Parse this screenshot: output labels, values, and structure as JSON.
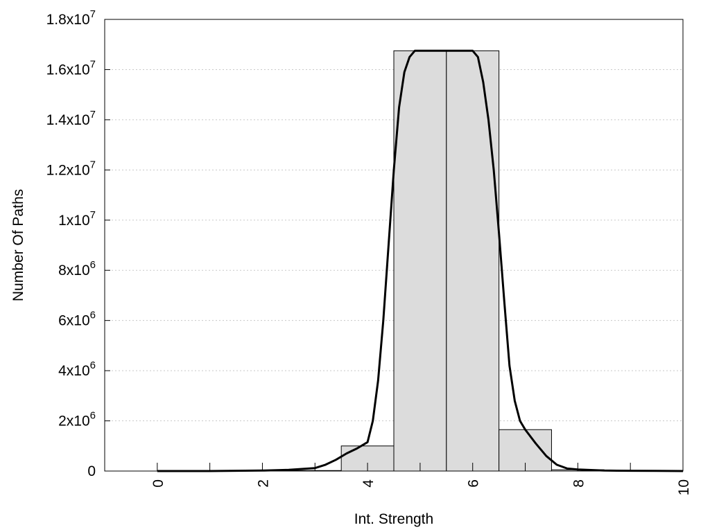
{
  "chart_data": {
    "type": "bar",
    "xlabel": "Int. Strength",
    "ylabel": "Number Of Paths",
    "xlim": [
      -1,
      10
    ],
    "ylim": [
      0,
      18000000
    ],
    "grid": "horizontal-dotted",
    "x_ticks": [
      {
        "value": 0,
        "label": "0"
      },
      {
        "value": 2,
        "label": "2"
      },
      {
        "value": 4,
        "label": "4"
      },
      {
        "value": 6,
        "label": "6"
      },
      {
        "value": 8,
        "label": "8"
      },
      {
        "value": 10,
        "label": "10"
      }
    ],
    "y_ticks": [
      {
        "value": 0,
        "mantissa": "0",
        "exponent": ""
      },
      {
        "value": 2000000,
        "mantissa": "2x10",
        "exponent": "6"
      },
      {
        "value": 4000000,
        "mantissa": "4x10",
        "exponent": "6"
      },
      {
        "value": 6000000,
        "mantissa": "6x10",
        "exponent": "6"
      },
      {
        "value": 8000000,
        "mantissa": "8x10",
        "exponent": "6"
      },
      {
        "value": 10000000,
        "mantissa": "1x10",
        "exponent": "7"
      },
      {
        "value": 12000000,
        "mantissa": "1.2x10",
        "exponent": "7"
      },
      {
        "value": 14000000,
        "mantissa": "1.4x10",
        "exponent": "7"
      },
      {
        "value": 16000000,
        "mantissa": "1.6x10",
        "exponent": "7"
      },
      {
        "value": 18000000,
        "mantissa": "1.8x10",
        "exponent": "7"
      }
    ],
    "bars": [
      {
        "x": 0,
        "value": 0
      },
      {
        "x": 1,
        "value": 0
      },
      {
        "x": 2,
        "value": 0
      },
      {
        "x": 3,
        "value": 20000
      },
      {
        "x": 4,
        "value": 1000000
      },
      {
        "x": 5,
        "value": 16750000
      },
      {
        "x": 6,
        "value": 16750000
      },
      {
        "x": 7,
        "value": 1650000
      },
      {
        "x": 8,
        "value": 50000
      },
      {
        "x": 9,
        "value": 0
      },
      {
        "x": 10,
        "value": 0
      }
    ],
    "bar_width": 1,
    "curve": {
      "x": [
        0,
        1,
        2,
        2.5,
        3,
        3.2,
        3.4,
        3.6,
        3.8,
        4,
        4.1,
        4.2,
        4.3,
        4.4,
        4.5,
        4.6,
        4.7,
        4.8,
        4.9,
        5,
        5.1,
        5.5,
        5.9,
        6,
        6.1,
        6.2,
        6.3,
        6.4,
        6.5,
        6.6,
        6.7,
        6.8,
        6.9,
        7,
        7.2,
        7.4,
        7.6,
        7.8,
        8,
        8.5,
        9,
        9.5,
        10
      ],
      "y": [
        0,
        0,
        20000,
        50000,
        120000,
        250000,
        450000,
        700000,
        900000,
        1150000,
        2000000,
        3600000,
        6000000,
        9000000,
        12000000,
        14500000,
        15900000,
        16500000,
        16750000,
        16750000,
        16750000,
        16750000,
        16750000,
        16750000,
        16500000,
        15500000,
        14000000,
        12000000,
        9500000,
        6800000,
        4200000,
        2800000,
        2000000,
        1650000,
        1100000,
        600000,
        250000,
        100000,
        60000,
        20000,
        10000,
        5000,
        0
      ]
    },
    "colors": {
      "bar_fill": "#dcdcdc",
      "bar_stroke": "#000000",
      "curve": "#000000",
      "grid": "#c8c8c8"
    }
  }
}
